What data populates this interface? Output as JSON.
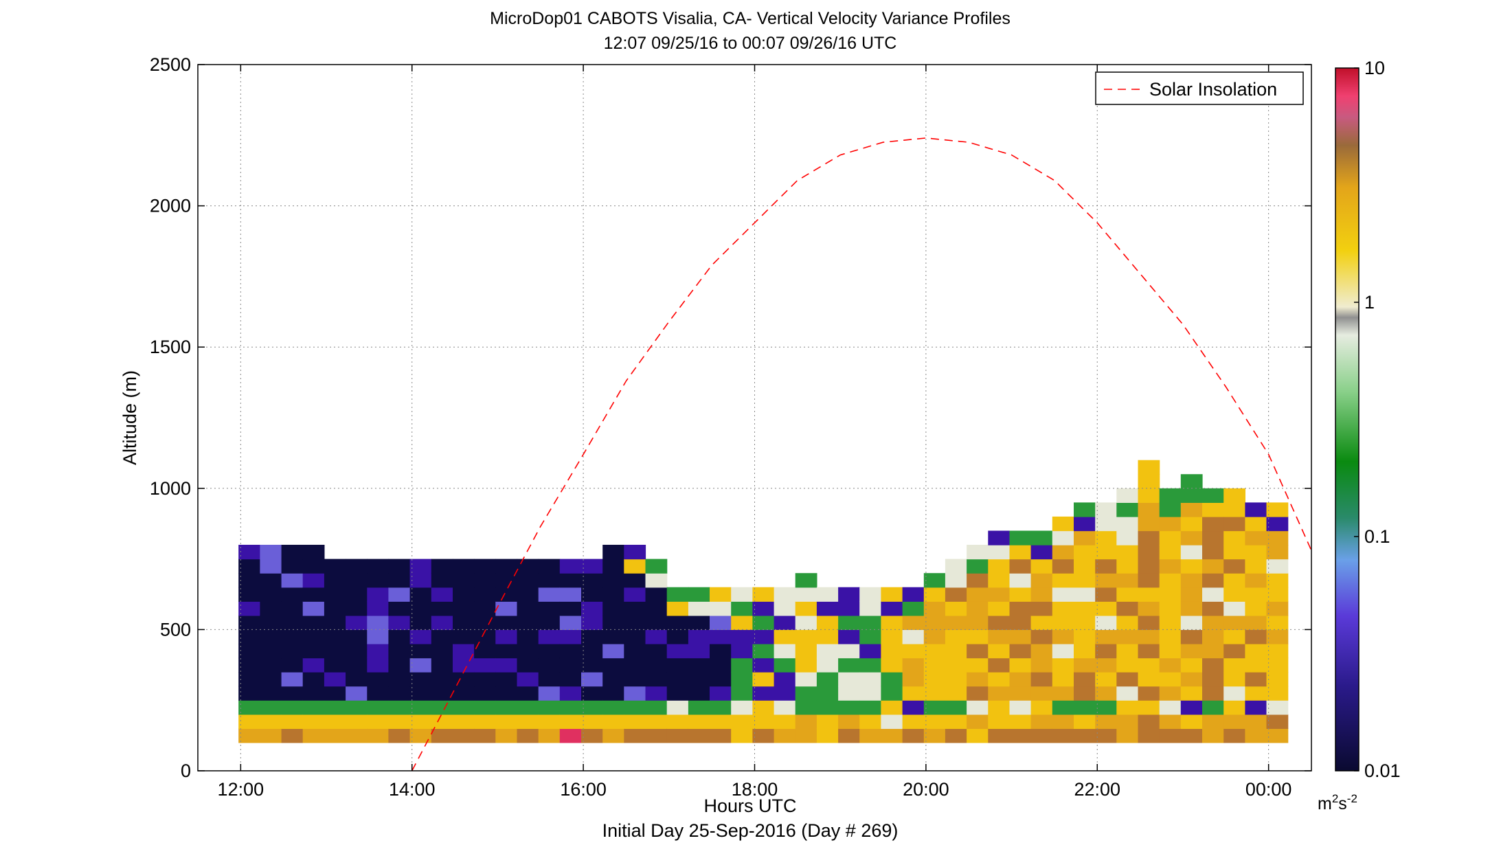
{
  "title": {
    "line1": "MicroDop01 CABOTS Visalia, CA- Vertical Velocity Variance Profiles",
    "line2": "12:07 09/25/16 to 00:07 09/26/16  UTC"
  },
  "footer": "Initial Day 25-Sep-2016 (Day # 269)",
  "colorbar": {
    "tick_labels": [
      "10",
      "1",
      "0.1",
      "0.01"
    ],
    "unit_base": "m",
    "unit_sup1": "2",
    "unit_mid": "s",
    "unit_sup2": "-2"
  },
  "colors": {
    "night": "#0c0c3e",
    "purple": "#3a12a6",
    "green": "#2a9a3a",
    "light": "#e6e8d8",
    "yellow": "#f2c210",
    "orange": "#e3a51a",
    "brown": "#b8752e",
    "red": "#e03060",
    "solar_line": "#ff0000"
  },
  "chart_data": {
    "type": "heatmap",
    "xlabel": "Hours UTC",
    "ylabel": "Altitude (m)",
    "x_ticks": [
      "12:00",
      "14:00",
      "16:00",
      "18:00",
      "20:00",
      "22:00",
      "00:00"
    ],
    "x_tick_hours": [
      12,
      14,
      16,
      18,
      20,
      22,
      24
    ],
    "xlim_hours": [
      11.5,
      24.5
    ],
    "ylim": [
      0,
      2500
    ],
    "y_ticks": [
      0,
      500,
      1000,
      1500,
      2000,
      2500
    ],
    "grid": true,
    "colorbar_range": [
      0.01,
      10
    ],
    "colorbar_scale": "log",
    "legend": {
      "entries": [
        "Solar Insolation"
      ],
      "position": "top-right"
    },
    "solar_insolation": {
      "peak_hour": 20.0,
      "peak_altitude": 2240,
      "zero_hour": 14.0,
      "x_hours": [
        14.0,
        14.5,
        15.0,
        15.5,
        16.0,
        16.5,
        17.0,
        17.5,
        18.0,
        18.5,
        19.0,
        19.5,
        20.0,
        20.5,
        21.0,
        21.5,
        22.0,
        22.5,
        23.0,
        23.5,
        24.0,
        24.5
      ],
      "y_altitude": [
        0,
        290,
        580,
        865,
        1120,
        1380,
        1590,
        1790,
        1940,
        2090,
        2180,
        2225,
        2240,
        2225,
        2180,
        2090,
        1940,
        1760,
        1580,
        1360,
        1120,
        780
      ]
    },
    "variance_columns": {
      "note": "approximate variance category per column: bins start at 125 m, 50 m each",
      "column_hours": [
        12.1,
        12.35,
        12.6,
        12.85,
        13.1,
        13.35,
        13.6,
        13.85,
        14.1,
        14.35,
        14.6,
        14.85,
        15.1,
        15.35,
        15.6,
        15.85,
        16.1,
        16.35,
        16.6,
        16.85,
        17.1,
        17.35,
        17.6,
        17.85,
        18.1,
        18.35,
        18.6,
        18.85,
        19.1,
        19.35,
        19.6,
        19.85,
        20.1,
        20.35,
        20.6,
        20.85,
        21.1,
        21.35,
        21.6,
        21.85,
        22.1,
        22.35,
        22.6,
        22.85,
        23.1,
        23.35,
        23.6,
        23.85,
        24.1
      ],
      "top_altitude_m": [
        775,
        775,
        775,
        775,
        725,
        725,
        725,
        725,
        725,
        725,
        725,
        725,
        725,
        725,
        725,
        725,
        725,
        775,
        775,
        725,
        625,
        625,
        625,
        625,
        625,
        625,
        675,
        625,
        625,
        625,
        625,
        625,
        675,
        725,
        775,
        825,
        825,
        825,
        875,
        925,
        925,
        975,
        1075,
        975,
        1025,
        975,
        975,
        925,
        925
      ]
    }
  }
}
